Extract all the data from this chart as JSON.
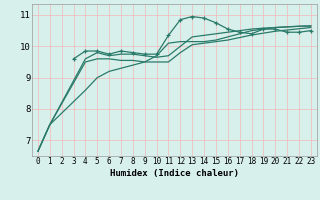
{
  "title": "",
  "xlabel": "Humidex (Indice chaleur)",
  "background_color": "#d8f0ec",
  "grid_color": "#f0b8b8",
  "line_color": "#2a7a6a",
  "xlim": [
    -0.5,
    23.5
  ],
  "ylim": [
    6.5,
    11.35
  ],
  "yticks": [
    7,
    8,
    9,
    10,
    11
  ],
  "xticks": [
    0,
    1,
    2,
    3,
    4,
    5,
    6,
    7,
    8,
    9,
    10,
    11,
    12,
    13,
    14,
    15,
    16,
    17,
    18,
    19,
    20,
    21,
    22,
    23
  ],
  "series": [
    {
      "x": [
        0,
        1,
        4,
        5,
        6,
        7,
        8,
        9,
        10,
        11,
        12,
        13,
        14,
        15,
        16,
        17,
        18,
        19,
        20,
        21,
        22,
        23
      ],
      "y": [
        6.65,
        7.5,
        8.6,
        9.0,
        9.2,
        9.3,
        9.4,
        9.5,
        9.7,
        10.1,
        10.15,
        10.15,
        10.15,
        10.2,
        10.3,
        10.4,
        10.5,
        10.55,
        10.6,
        10.62,
        10.64,
        10.65
      ],
      "marker": false
    },
    {
      "x": [
        3,
        4,
        5,
        6,
        7,
        8,
        9,
        10,
        11,
        12,
        13,
        14,
        15,
        16,
        17,
        18,
        19,
        20,
        21,
        22,
        23
      ],
      "y": [
        9.6,
        9.85,
        9.85,
        9.75,
        9.85,
        9.8,
        9.75,
        9.75,
        10.35,
        10.85,
        10.95,
        10.9,
        10.75,
        10.55,
        10.45,
        10.4,
        10.55,
        10.55,
        10.45,
        10.45,
        10.5
      ],
      "marker": true
    },
    {
      "x": [
        0,
        1,
        4,
        5,
        6,
        7,
        8,
        9,
        10,
        11,
        12,
        13,
        14,
        15,
        16,
        17,
        18,
        19,
        20,
        21,
        22,
        23
      ],
      "y": [
        6.65,
        7.5,
        9.6,
        9.8,
        9.7,
        9.75,
        9.75,
        9.7,
        9.65,
        9.7,
        10.0,
        10.3,
        10.35,
        10.4,
        10.45,
        10.5,
        10.55,
        10.58,
        10.6,
        10.62,
        10.64,
        10.65
      ],
      "marker": false
    },
    {
      "x": [
        0,
        1,
        4,
        5,
        6,
        7,
        8,
        9,
        10,
        11,
        12,
        13,
        14,
        15,
        16,
        17,
        18,
        19,
        20,
        21,
        22,
        23
      ],
      "y": [
        6.65,
        7.5,
        9.5,
        9.6,
        9.6,
        9.55,
        9.55,
        9.5,
        9.5,
        9.5,
        9.8,
        10.05,
        10.1,
        10.15,
        10.2,
        10.28,
        10.36,
        10.42,
        10.48,
        10.52,
        10.56,
        10.6
      ],
      "marker": false
    }
  ]
}
